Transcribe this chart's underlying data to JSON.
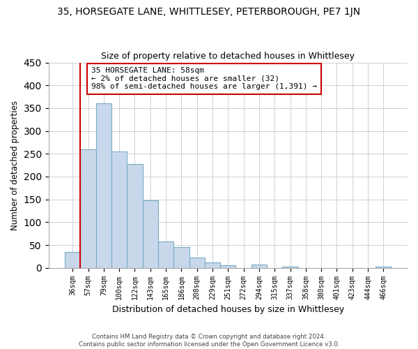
{
  "title": "35, HORSEGATE LANE, WHITTLESEY, PETERBOROUGH, PE7 1JN",
  "subtitle": "Size of property relative to detached houses in Whittlesey",
  "xlabel": "Distribution of detached houses by size in Whittlesey",
  "ylabel": "Number of detached properties",
  "bar_color": "#c8d8ea",
  "bar_edge_color": "#7aaac8",
  "vline_color": "#cc0000",
  "vline_x": 0.5,
  "annotation_title": "35 HORSEGATE LANE: 58sqm",
  "annotation_line1": "← 2% of detached houses are smaller (32)",
  "annotation_line2": "98% of semi-detached houses are larger (1,391) →",
  "annotation_box_color": "#ffffff",
  "annotation_box_edge": "#cc0000",
  "categories": [
    "36sqm",
    "57sqm",
    "79sqm",
    "100sqm",
    "122sqm",
    "143sqm",
    "165sqm",
    "186sqm",
    "208sqm",
    "229sqm",
    "251sqm",
    "272sqm",
    "294sqm",
    "315sqm",
    "337sqm",
    "358sqm",
    "380sqm",
    "401sqm",
    "423sqm",
    "444sqm",
    "466sqm"
  ],
  "values": [
    35,
    260,
    360,
    255,
    227,
    148,
    57,
    45,
    22,
    12,
    6,
    0,
    7,
    0,
    3,
    0,
    0,
    0,
    0,
    0,
    3
  ],
  "ylim": [
    0,
    450
  ],
  "yticks": [
    0,
    50,
    100,
    150,
    200,
    250,
    300,
    350,
    400,
    450
  ],
  "footer_line1": "Contains HM Land Registry data © Crown copyright and database right 2024.",
  "footer_line2": "Contains public sector information licensed under the Open Government Licence v3.0.",
  "figsize": [
    6.0,
    5.0
  ],
  "dpi": 100
}
